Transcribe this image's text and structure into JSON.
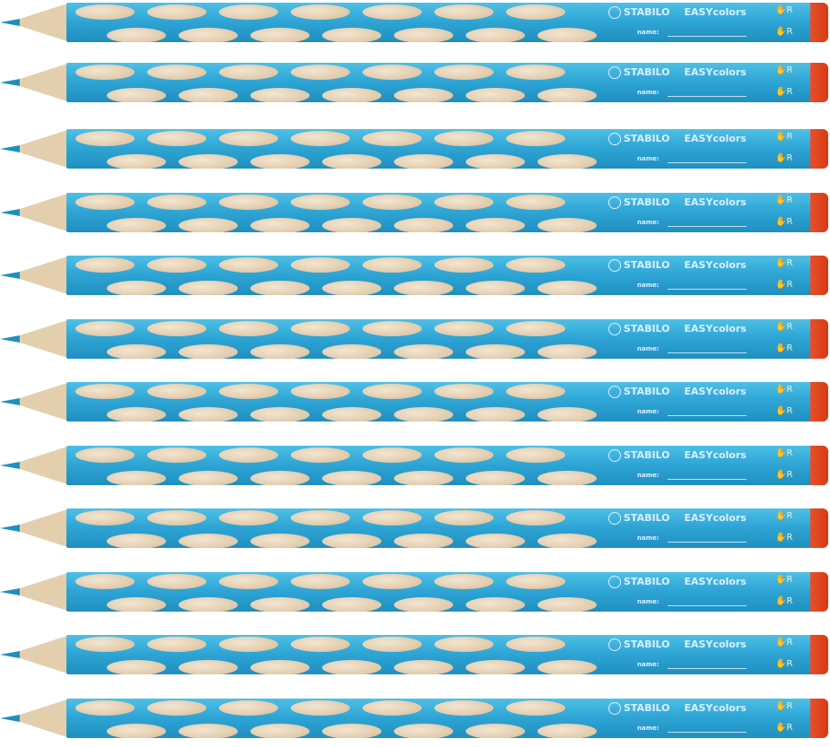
{
  "product": {
    "brand": "STABILO",
    "model": "EASYcolors",
    "name_label": "name:",
    "handedness_mark": "R",
    "count": 12,
    "colors": {
      "body": "#2fa6d6",
      "cap": "#e04a20",
      "grip": "#e8d4b6"
    }
  }
}
